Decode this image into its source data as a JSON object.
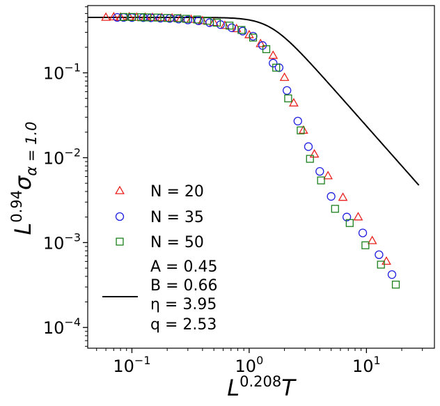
{
  "chart_data": {
    "type": "scatter",
    "title": "",
    "x_scale": "log",
    "y_scale": "log",
    "xlim": [
      0.042,
      38
    ],
    "ylim": [
      5.7e-05,
      0.62
    ],
    "grid": false,
    "legend_placement": "lower-left",
    "xlabel": {
      "base": "L",
      "exponent": "0.208",
      "variable": "T"
    },
    "ylabel": {
      "base": "L",
      "exponent": "0.94",
      "symbol": "σ",
      "subscript": "α = 1.0"
    },
    "x_ticks": [
      {
        "value": 0.1,
        "base": "10",
        "exponent": "−1"
      },
      {
        "value": 1,
        "base": "10",
        "exponent": "0"
      },
      {
        "value": 10,
        "base": "10",
        "exponent": "1"
      }
    ],
    "y_ticks": [
      {
        "value": 0.0001,
        "base": "10",
        "exponent": "−4"
      },
      {
        "value": 0.001,
        "base": "10",
        "exponent": "−3"
      },
      {
        "value": 0.01,
        "base": "10",
        "exponent": "−2"
      },
      {
        "value": 0.1,
        "base": "10",
        "exponent": "−1"
      }
    ],
    "series": [
      {
        "name": "N = 20",
        "marker": "triangle",
        "color": "#e8211d",
        "points": [
          [
            0.06,
            0.45
          ],
          [
            0.07,
            0.455
          ],
          [
            0.08,
            0.45
          ],
          [
            0.095,
            0.455
          ],
          [
            0.11,
            0.45
          ],
          [
            0.13,
            0.45
          ],
          [
            0.15,
            0.448
          ],
          [
            0.18,
            0.445
          ],
          [
            0.22,
            0.44
          ],
          [
            0.26,
            0.435
          ],
          [
            0.32,
            0.425
          ],
          [
            0.4,
            0.41
          ],
          [
            0.5,
            0.39
          ],
          [
            0.62,
            0.36
          ],
          [
            0.78,
            0.33
          ],
          [
            1.0,
            0.28
          ],
          [
            1.25,
            0.22
          ],
          [
            1.6,
            0.16
          ],
          [
            2.0,
            0.088
          ],
          [
            2.4,
            0.044
          ],
          [
            2.9,
            0.021
          ],
          [
            3.6,
            0.011
          ],
          [
            4.7,
            0.0061
          ],
          [
            6.3,
            0.0034
          ],
          [
            8.5,
            0.002
          ],
          [
            11.2,
            0.00105
          ],
          [
            14.8,
            0.0006
          ]
        ]
      },
      {
        "name": "N = 35",
        "marker": "circle",
        "color": "#1f1fe0",
        "points": [
          [
            0.075,
            0.45
          ],
          [
            0.085,
            0.45
          ],
          [
            0.1,
            0.448
          ],
          [
            0.125,
            0.447
          ],
          [
            0.145,
            0.445
          ],
          [
            0.175,
            0.44
          ],
          [
            0.21,
            0.437
          ],
          [
            0.25,
            0.43
          ],
          [
            0.3,
            0.42
          ],
          [
            0.37,
            0.41
          ],
          [
            0.46,
            0.39
          ],
          [
            0.57,
            0.37
          ],
          [
            0.71,
            0.34
          ],
          [
            0.88,
            0.31
          ],
          [
            1.08,
            0.27
          ],
          [
            1.3,
            0.21
          ],
          [
            1.6,
            0.13
          ],
          [
            1.8,
            0.115
          ],
          [
            2.1,
            0.062
          ],
          [
            2.6,
            0.027
          ],
          [
            3.2,
            0.0135
          ],
          [
            4.0,
            0.0069
          ],
          [
            5.0,
            0.0035
          ],
          [
            6.8,
            0.002
          ],
          [
            9.3,
            0.0013
          ],
          [
            12.8,
            0.00072
          ],
          [
            16.5,
            0.00042
          ]
        ]
      },
      {
        "name": "N = 50",
        "marker": "square",
        "color": "#1a7f1a",
        "points": [
          [
            0.085,
            0.455
          ],
          [
            0.1,
            0.455
          ],
          [
            0.12,
            0.452
          ],
          [
            0.135,
            0.45
          ],
          [
            0.165,
            0.448
          ],
          [
            0.2,
            0.443
          ],
          [
            0.245,
            0.44
          ],
          [
            0.29,
            0.433
          ],
          [
            0.36,
            0.425
          ],
          [
            0.44,
            0.41
          ],
          [
            0.53,
            0.39
          ],
          [
            0.68,
            0.36
          ],
          [
            0.86,
            0.32
          ],
          [
            1.08,
            0.26
          ],
          [
            1.4,
            0.19
          ],
          [
            1.7,
            0.115
          ],
          [
            2.15,
            0.05
          ],
          [
            2.75,
            0.021
          ],
          [
            3.3,
            0.0097
          ],
          [
            4.1,
            0.0054
          ],
          [
            5.4,
            0.0025
          ],
          [
            7.2,
            0.0017
          ],
          [
            9.8,
            0.00093
          ],
          [
            13.3,
            0.00055
          ],
          [
            17.8,
            0.00032
          ]
        ]
      }
    ],
    "fit_curve": {
      "A": 0.45,
      "B": 0.66,
      "eta": 3.95,
      "q": 2.53,
      "x_range": [
        0.042,
        28
      ],
      "legend_lines": [
        "A = 0.45",
        "B = 0.66",
        "η = 3.95",
        "q = 2.53"
      ]
    }
  }
}
